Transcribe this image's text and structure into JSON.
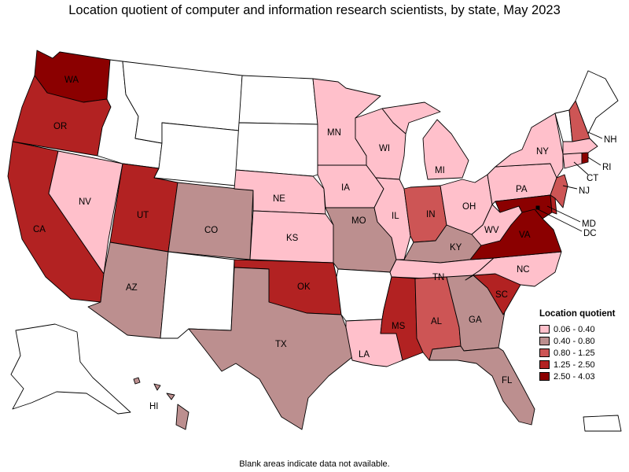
{
  "title": "Location quotient of computer and information research scientists, by state, May 2023",
  "footnote": "Blank areas indicate data not available.",
  "legend": {
    "title": "Location quotient",
    "items": [
      {
        "label": "0.06 - 0.40",
        "color": "#ffc0cb"
      },
      {
        "label": "0.40 - 0.80",
        "color": "#bc8f8f"
      },
      {
        "label": "0.80 - 1.25",
        "color": "#cd5555"
      },
      {
        "label": "1.25 - 2.50",
        "color": "#b22222"
      },
      {
        "label": "2.50 - 4.03",
        "color": "#8b0000"
      }
    ]
  },
  "no_data_color": "#ffffff",
  "states": [
    {
      "abbr": "WA",
      "class": 4
    },
    {
      "abbr": "OR",
      "class": 3
    },
    {
      "abbr": "CA",
      "class": 3
    },
    {
      "abbr": "NV",
      "class": 0
    },
    {
      "abbr": "UT",
      "class": 3
    },
    {
      "abbr": "AZ",
      "class": 1
    },
    {
      "abbr": "CO",
      "class": 1
    },
    {
      "abbr": "NE",
      "class": 0
    },
    {
      "abbr": "KS",
      "class": 0
    },
    {
      "abbr": "OK",
      "class": 3
    },
    {
      "abbr": "TX",
      "class": 1
    },
    {
      "abbr": "MN",
      "class": 0
    },
    {
      "abbr": "IA",
      "class": 0
    },
    {
      "abbr": "MO",
      "class": 1
    },
    {
      "abbr": "LA",
      "class": 0
    },
    {
      "abbr": "WI",
      "class": 0
    },
    {
      "abbr": "IL",
      "class": 0
    },
    {
      "abbr": "MI",
      "class": 0
    },
    {
      "abbr": "IN",
      "class": 2
    },
    {
      "abbr": "OH",
      "class": 0
    },
    {
      "abbr": "KY",
      "class": 1
    },
    {
      "abbr": "TN",
      "class": 0
    },
    {
      "abbr": "MS",
      "class": 3
    },
    {
      "abbr": "AL",
      "class": 2
    },
    {
      "abbr": "GA",
      "class": 1
    },
    {
      "abbr": "FL",
      "class": 1
    },
    {
      "abbr": "SC",
      "class": 3
    },
    {
      "abbr": "NC",
      "class": 0
    },
    {
      "abbr": "VA",
      "class": 4
    },
    {
      "abbr": "WV",
      "class": 0
    },
    {
      "abbr": "PA",
      "class": 0
    },
    {
      "abbr": "NY",
      "class": 0
    },
    {
      "abbr": "NJ",
      "class": 2
    },
    {
      "abbr": "MD",
      "class": 4
    },
    {
      "abbr": "DC",
      "class": 4
    },
    {
      "abbr": "CT",
      "class": 0
    },
    {
      "abbr": "RI",
      "class": 4
    },
    {
      "abbr": "MA",
      "class": 0
    },
    {
      "abbr": "NH",
      "class": 2
    },
    {
      "abbr": "HI",
      "class": 1
    },
    {
      "abbr": "DE",
      "class": 3
    },
    {
      "abbr": "ID",
      "class": null
    },
    {
      "abbr": "MT",
      "class": null
    },
    {
      "abbr": "WY",
      "class": null
    },
    {
      "abbr": "ND",
      "class": null
    },
    {
      "abbr": "SD",
      "class": null
    },
    {
      "abbr": "NM",
      "class": null
    },
    {
      "abbr": "AR",
      "class": null
    },
    {
      "abbr": "VT",
      "class": null
    },
    {
      "abbr": "ME",
      "class": null
    },
    {
      "abbr": "AK",
      "class": null
    },
    {
      "abbr": "PR",
      "class": null
    }
  ]
}
